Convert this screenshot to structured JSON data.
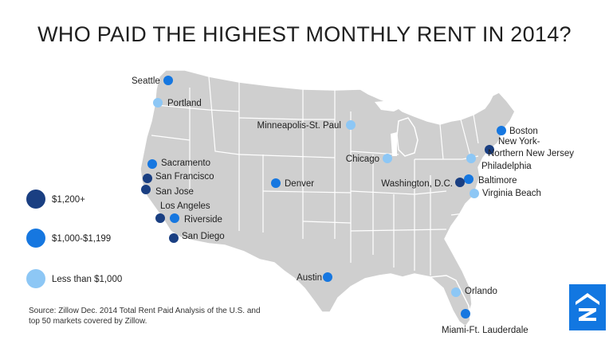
{
  "title": "WHO PAID THE HIGHEST MONTHLY RENT IN 2014?",
  "colors": {
    "land": "#cfcfcf",
    "borders": "#ffffff",
    "tier_high": "#1a3f82",
    "tier_mid": "#1677e0",
    "tier_low": "#8dc7f5",
    "logo_bg": "#1277e1"
  },
  "legend": [
    {
      "tier": "high",
      "label": "$1,200+"
    },
    {
      "tier": "mid",
      "label": "$1,000-$1,199"
    },
    {
      "tier": "low",
      "label": "Less than $1,000"
    }
  ],
  "cities": [
    {
      "name": "Seattle",
      "tier": "mid"
    },
    {
      "name": "Portland",
      "tier": "low"
    },
    {
      "name": "Sacramento",
      "tier": "mid"
    },
    {
      "name": "San Francisco",
      "tier": "high"
    },
    {
      "name": "San Jose",
      "tier": "high"
    },
    {
      "name": "Los Angeles",
      "tier": "high"
    },
    {
      "name": "Riverside",
      "tier": "mid"
    },
    {
      "name": "San Diego",
      "tier": "high"
    },
    {
      "name": "Denver",
      "tier": "mid"
    },
    {
      "name": "Minneapolis-St. Paul",
      "tier": "low"
    },
    {
      "name": "Chicago",
      "tier": "low"
    },
    {
      "name": "Austin",
      "tier": "mid"
    },
    {
      "name": "Boston",
      "tier": "mid"
    },
    {
      "name": "New York-",
      "tier": "high"
    },
    {
      "name": "Northern New Jersey",
      "tier": "high"
    },
    {
      "name": "Philadelphia",
      "tier": "low"
    },
    {
      "name": "Baltimore",
      "tier": "mid"
    },
    {
      "name": "Washington, D.C.",
      "tier": "high"
    },
    {
      "name": "Virginia Beach",
      "tier": "low"
    },
    {
      "name": "Orlando",
      "tier": "low"
    },
    {
      "name": "Miami-Ft. Lauderdale",
      "tier": "mid"
    }
  ],
  "source_note": "Source: Zillow Dec. 2014 Total Rent Paid Analysis of the U.S. and top 50 markets covered by Zillow.",
  "logo_icon": "zillow-z-icon"
}
